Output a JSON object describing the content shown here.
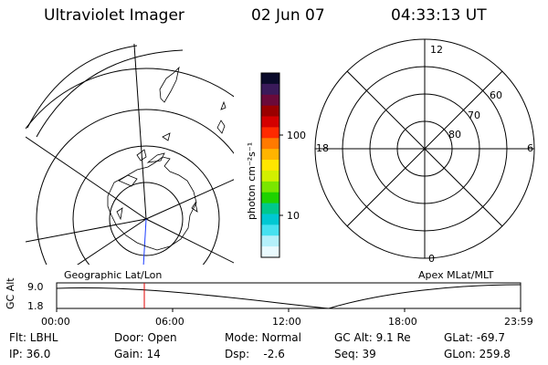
{
  "header": {
    "instrument": "Ultraviolet Imager",
    "date": "02 Jun 07",
    "time": "04:33:13 UT"
  },
  "colorbar": {
    "unit": "photon cm⁻²s⁻¹",
    "ticks": [
      "100",
      "10"
    ],
    "colors": [
      "#0a0a2a",
      "#3a1a5a",
      "#6a0a3a",
      "#9a0000",
      "#d40000",
      "#ff2a00",
      "#ff7a00",
      "#ffb400",
      "#ffe600",
      "#d2f000",
      "#7ae600",
      "#1ed200",
      "#00c88c",
      "#00c8d2",
      "#46e1f0",
      "#b4f0fa",
      "#eafafe"
    ]
  },
  "geographic_map": {
    "label": "Geographic Lat/Lon",
    "colors": {
      "grid": "#000000",
      "meridian": "#1a3cff",
      "coast": "#000000"
    }
  },
  "polar_plot": {
    "label": "Apex MLat/MLT",
    "mlt_labels": {
      "top": "12",
      "right": "6",
      "bottom": "0",
      "left": "18"
    },
    "lat_labels": [
      "60",
      "70",
      "80"
    ]
  },
  "timeline": {
    "axis_title": "GC Alt",
    "y_labels": [
      "9.0",
      "1.8"
    ],
    "x_labels": [
      "00:00",
      "06:00",
      "12:00",
      "18:00",
      "23:59"
    ],
    "current_marker_color": "#e00000",
    "current_time_fraction": 0.189
  },
  "info": {
    "filter": "Flt: LBHL",
    "door": "Door: Open",
    "mode": "Mode: Normal",
    "gc_alt": "GC Alt: 9.1 Re",
    "glat": "GLat: -69.7",
    "ip": "IP: 36.0",
    "gain": "Gain: 14",
    "dsp": "Dsp:    -2.6",
    "seq": "Seq: 39",
    "glon": "GLon: 259.8"
  }
}
